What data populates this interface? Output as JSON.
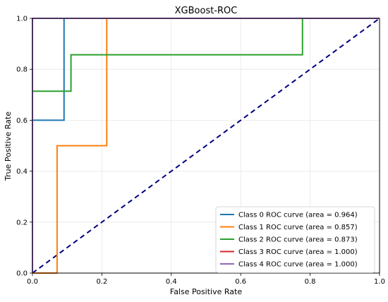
{
  "chart_data": {
    "type": "line",
    "title": "XGBoost-ROC",
    "xlabel": "False Positive Rate",
    "ylabel": "True Positive Rate",
    "xlim": [
      0.0,
      1.0
    ],
    "ylim": [
      0.0,
      1.0
    ],
    "xticks": [
      "0.0",
      "0.2",
      "0.4",
      "0.6",
      "0.8",
      "1.0"
    ],
    "yticks": [
      "0.0",
      "0.2",
      "0.4",
      "0.6",
      "0.8",
      "1.0"
    ],
    "grid": true,
    "legend_position": "lower-right",
    "diagonal": {
      "x": [
        0,
        1
      ],
      "y": [
        0,
        1
      ],
      "color": "#000080",
      "style": "dashed"
    },
    "series": [
      {
        "name": "Class 0 ROC curve (area = 0.964)",
        "color": "#1f77b4",
        "x": [
          0,
          0,
          0.091,
          0.091,
          1
        ],
        "y": [
          0,
          0.6,
          0.6,
          1.0,
          1.0
        ]
      },
      {
        "name": "Class 1 ROC curve (area = 0.857)",
        "color": "#ff7f0e",
        "x": [
          0,
          0.071,
          0.071,
          0.214,
          0.214,
          1
        ],
        "y": [
          0,
          0,
          0.5,
          0.5,
          1.0,
          1.0
        ]
      },
      {
        "name": "Class 2 ROC curve (area = 0.873)",
        "color": "#2ca02c",
        "x": [
          0,
          0,
          0.111,
          0.111,
          0.778,
          0.778,
          1
        ],
        "y": [
          0,
          0.714,
          0.714,
          0.857,
          0.857,
          1.0,
          1.0
        ]
      },
      {
        "name": "Class 3 ROC curve (area = 1.000)",
        "color": "#d62728",
        "x": [
          0,
          0,
          1
        ],
        "y": [
          0,
          1.0,
          1.0
        ]
      },
      {
        "name": "Class 4 ROC curve (area = 1.000)",
        "color": "#9467bd",
        "x": [
          0,
          0,
          1
        ],
        "y": [
          0,
          1.0,
          1.0
        ]
      }
    ]
  }
}
